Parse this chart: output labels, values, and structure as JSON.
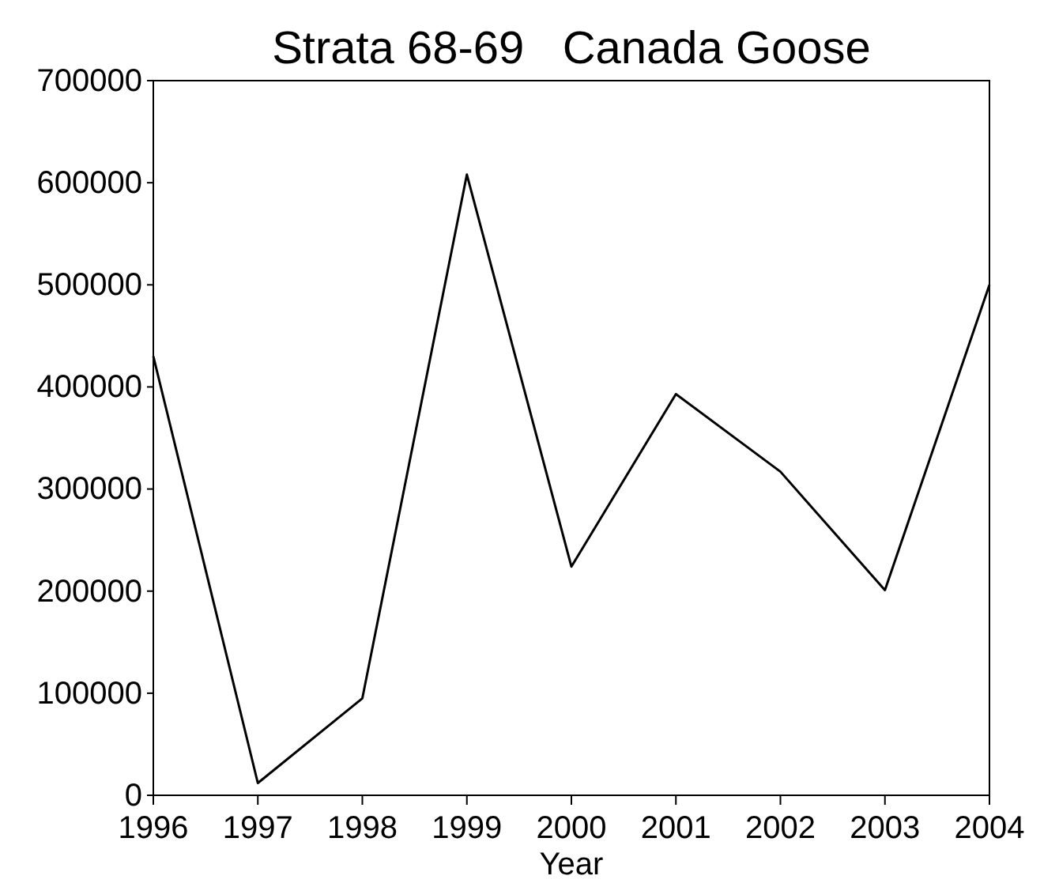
{
  "chart_data": {
    "type": "line",
    "title": "Strata 68-69   Canada Goose",
    "xlabel": "Year",
    "x": [
      1996,
      1997,
      1998,
      1999,
      2000,
      2001,
      2002,
      2003,
      2004
    ],
    "series": [
      {
        "color": "#000000",
        "values": [
          430000,
          12000,
          95000,
          608000,
          224000,
          393000,
          317000,
          201000,
          500000
        ]
      }
    ],
    "xlim": [
      1996,
      2004
    ],
    "xticks": [
      1996,
      1997,
      1998,
      1999,
      2000,
      2001,
      2002,
      2003,
      2004
    ],
    "ylim": [
      0,
      700000
    ],
    "yticks": [
      0,
      100000,
      200000,
      300000,
      400000,
      500000,
      600000,
      700000
    ],
    "marker": "none",
    "line_style": "solid"
  }
}
